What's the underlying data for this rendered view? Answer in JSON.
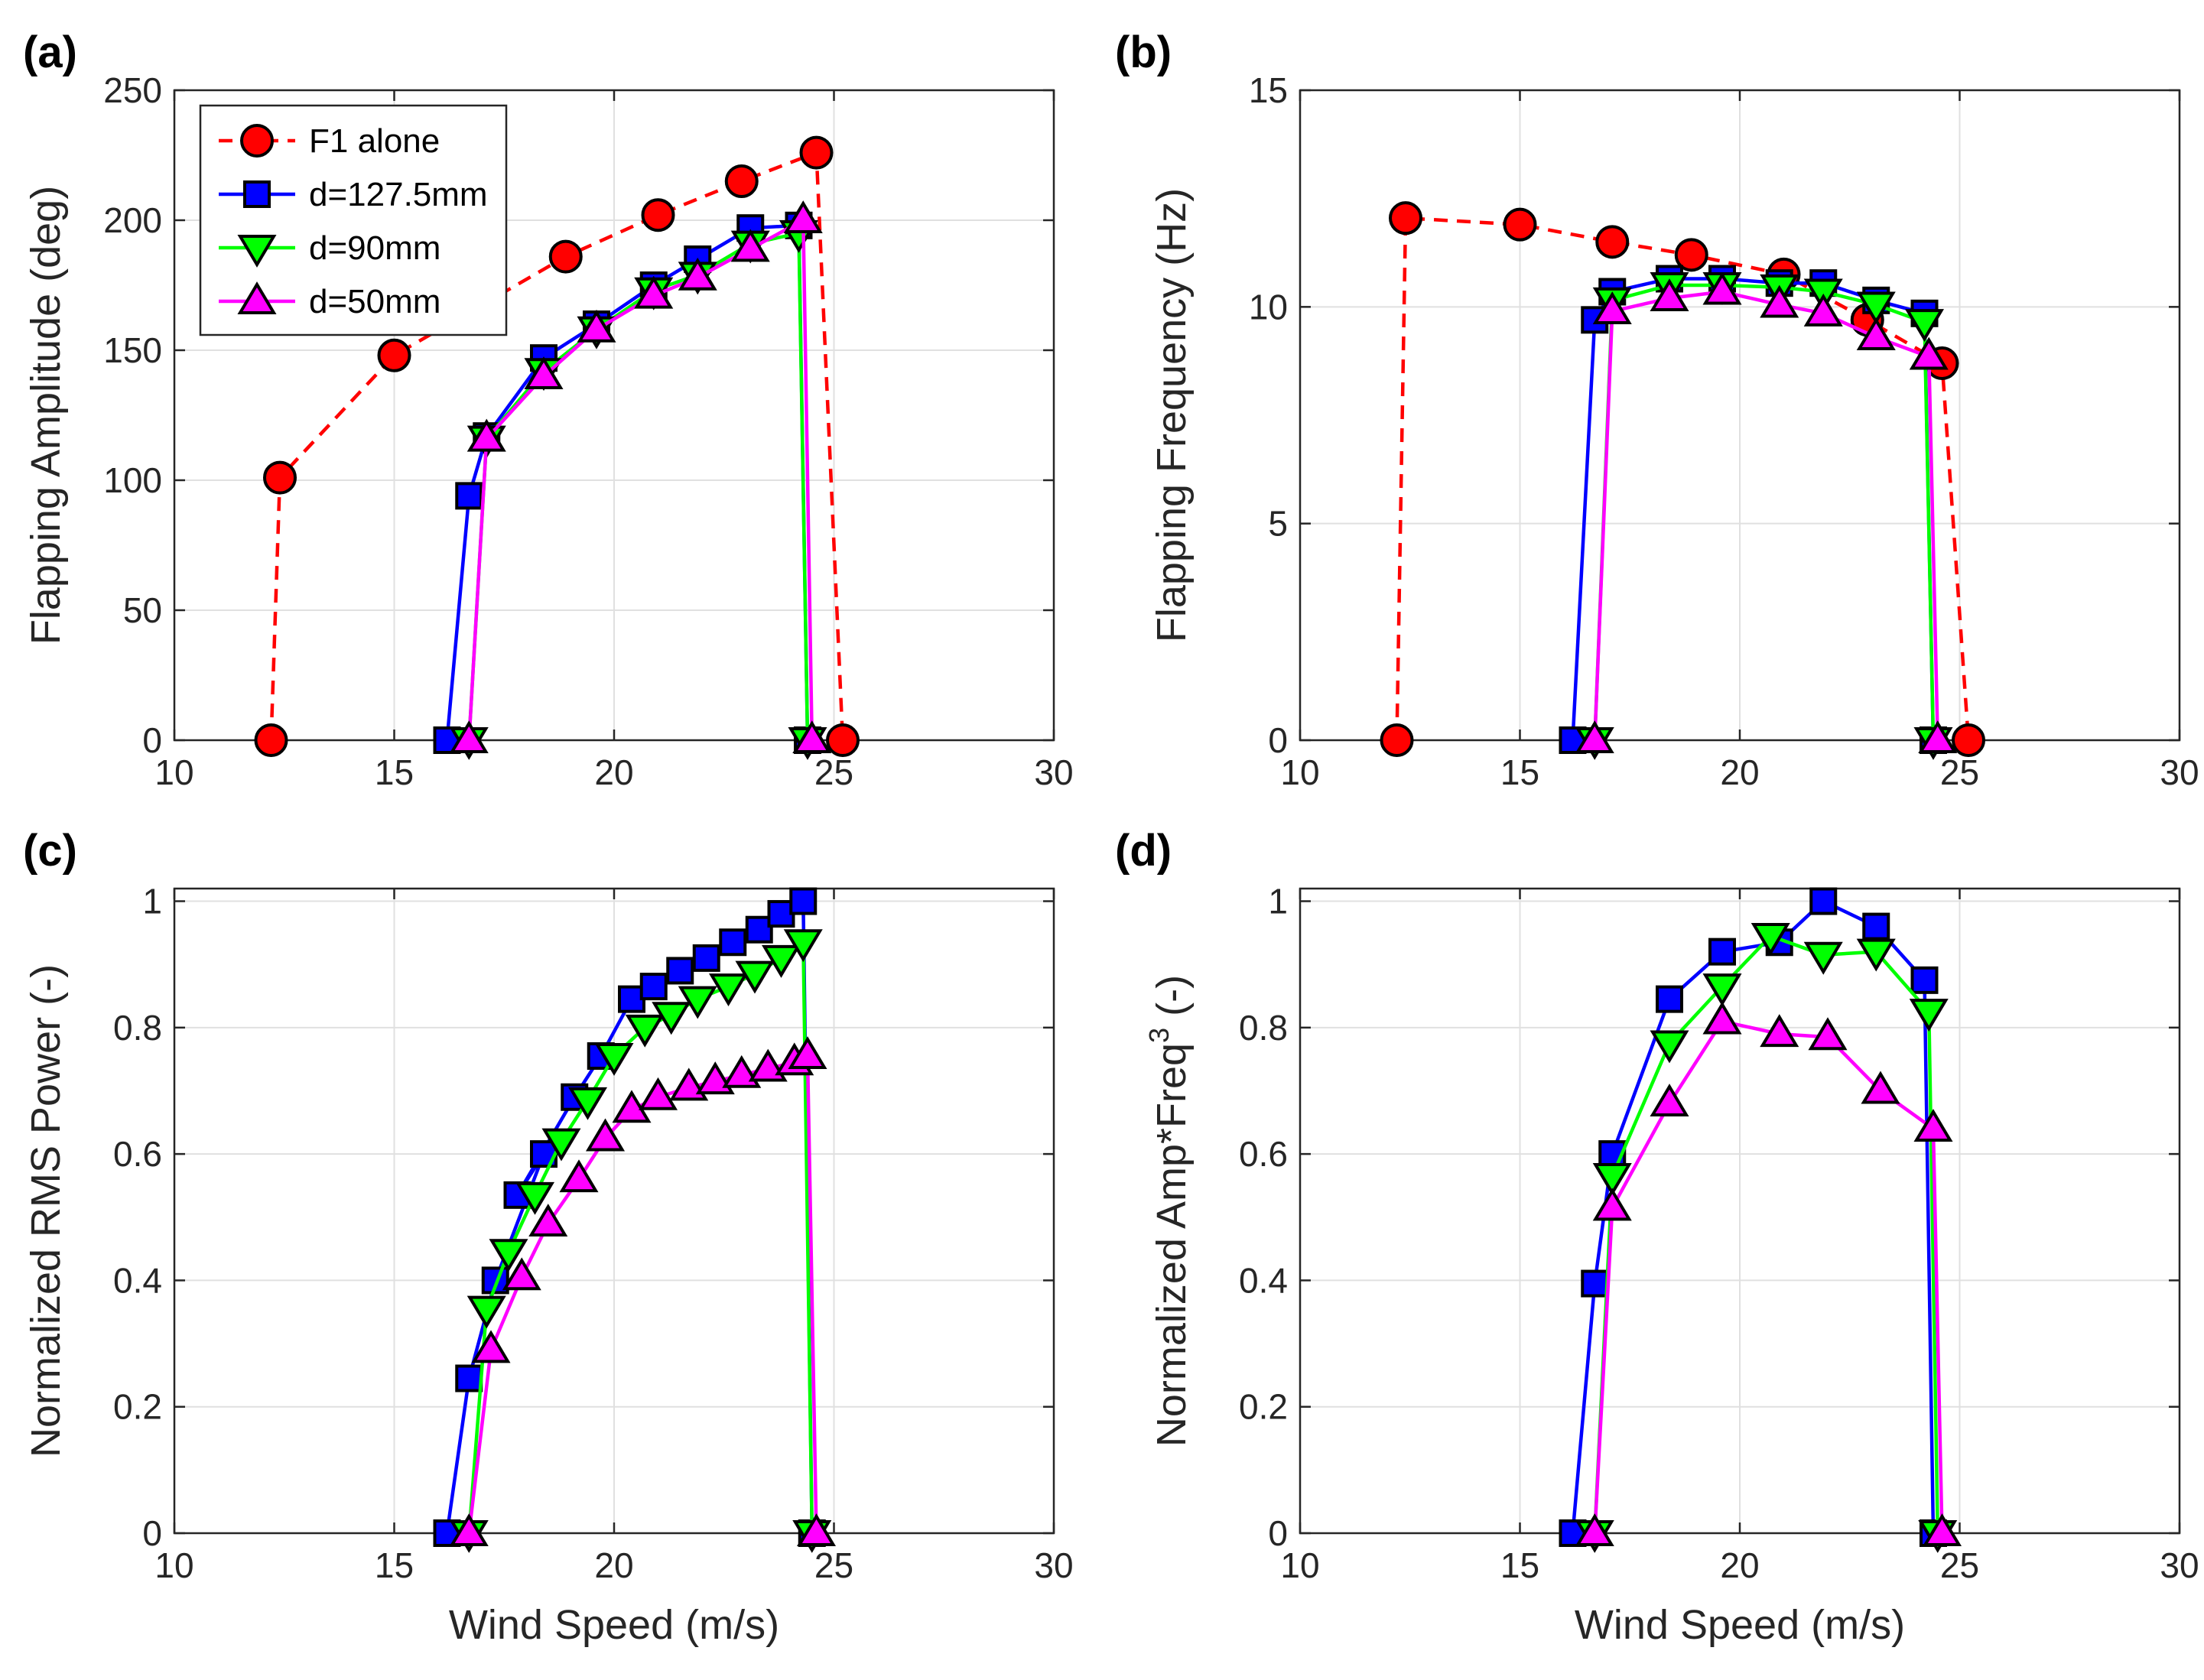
{
  "colors": {
    "series": [
      "#ff0000",
      "#0000ff",
      "#00ff00",
      "#ff00ff"
    ],
    "edge": "#000000",
    "grid": "#e0e0e0",
    "axis": "#262626"
  },
  "series_style": [
    {
      "marker": "circle",
      "line": "dashed"
    },
    {
      "marker": "square",
      "line": "solid"
    },
    {
      "marker": "triangle-down",
      "line": "solid"
    },
    {
      "marker": "triangle-up",
      "line": "solid"
    }
  ],
  "legend": {
    "location": "top-left",
    "entries": [
      "F1 alone",
      "d=127.5mm",
      "d=90mm",
      "d=50mm"
    ]
  },
  "chart_data": [
    {
      "panel_label": "(a)",
      "type": "line",
      "title": "",
      "xlabel": "",
      "ylabel": "Flapping Amplitude (deg)",
      "xlim": [
        10,
        30
      ],
      "ylim": [
        0,
        250
      ],
      "xticks": [
        "10",
        "15",
        "20",
        "25",
        "30"
      ],
      "yticks": [
        "0",
        "50",
        "100",
        "150",
        "200",
        "250"
      ],
      "grid": true,
      "legend": true,
      "series": [
        {
          "name": "F1 alone",
          "x": [
            12.2,
            12.4,
            15.0,
            18.9,
            21.0,
            22.9,
            24.6,
            25.2
          ],
          "y": [
            0,
            101,
            148,
            186,
            202,
            215,
            226,
            0
          ]
        },
        {
          "name": "d=127.5mm",
          "x": [
            16.2,
            16.7,
            17.1,
            18.4,
            19.6,
            20.9,
            21.9,
            23.1,
            24.2,
            24.4
          ],
          "y": [
            0,
            94,
            117,
            147,
            160,
            175,
            185,
            197,
            198,
            0
          ]
        },
        {
          "name": "d=90mm",
          "x": [
            16.7,
            17.1,
            18.4,
            19.6,
            20.9,
            21.9,
            23.1,
            24.2,
            24.4
          ],
          "y": [
            0,
            116,
            142,
            158,
            173,
            179,
            191,
            195,
            0
          ]
        },
        {
          "name": "d=50mm",
          "x": [
            16.7,
            17.1,
            18.4,
            19.6,
            20.9,
            21.9,
            23.1,
            24.3,
            24.5
          ],
          "y": [
            0,
            116,
            140,
            158,
            171,
            178,
            189,
            200,
            0
          ]
        }
      ]
    },
    {
      "panel_label": "(b)",
      "type": "line",
      "title": "",
      "xlabel": "",
      "ylabel": "Flapping Frequency (Hz)",
      "xlim": [
        10,
        30
      ],
      "ylim": [
        0,
        15
      ],
      "xticks": [
        "10",
        "15",
        "20",
        "25",
        "30"
      ],
      "yticks": [
        "0",
        "5",
        "10",
        "15"
      ],
      "grid": true,
      "legend": false,
      "series": [
        {
          "name": "F1 alone",
          "x": [
            12.2,
            12.4,
            15.0,
            17.1,
            18.9,
            21.0,
            22.9,
            24.6,
            25.2
          ],
          "y": [
            0,
            12.05,
            11.9,
            11.5,
            11.2,
            10.75,
            9.7,
            8.7,
            0
          ]
        },
        {
          "name": "d=127.5mm",
          "x": [
            16.2,
            16.7,
            17.1,
            18.4,
            19.6,
            20.9,
            21.9,
            23.1,
            24.2,
            24.4
          ],
          "y": [
            0,
            9.7,
            10.35,
            10.65,
            10.65,
            10.55,
            10.55,
            10.15,
            9.85,
            0
          ]
        },
        {
          "name": "d=90mm",
          "x": [
            16.7,
            17.1,
            18.4,
            19.6,
            20.9,
            21.9,
            23.1,
            24.2,
            24.4
          ],
          "y": [
            0,
            10.15,
            10.5,
            10.5,
            10.45,
            10.35,
            10.05,
            9.65,
            0
          ]
        },
        {
          "name": "d=50mm",
          "x": [
            16.7,
            17.1,
            18.4,
            19.6,
            20.9,
            21.9,
            23.1,
            24.3,
            24.5
          ],
          "y": [
            0,
            9.9,
            10.2,
            10.35,
            10.05,
            9.85,
            9.3,
            8.85,
            0
          ]
        }
      ]
    },
    {
      "panel_label": "(c)",
      "type": "line",
      "title": "",
      "xlabel": "Wind Speed (m/s)",
      "ylabel": "Normalized RMS Power (-)",
      "xlim": [
        10,
        30
      ],
      "ylim": [
        0,
        1.02
      ],
      "xticks": [
        "10",
        "15",
        "20",
        "25",
        "30"
      ],
      "yticks": [
        "0",
        "0.2",
        "0.4",
        "0.6",
        "0.8",
        "1"
      ],
      "grid": true,
      "legend": false,
      "series": [
        {
          "name": "d=127.5mm",
          "x": [
            16.2,
            16.7,
            17.3,
            18.4,
            17.8,
            19.1,
            19.7,
            20.4,
            20.9,
            21.5,
            22.1,
            22.7,
            23.3,
            23.8,
            24.3,
            24.5
          ],
          "y": [
            0,
            0.245,
            0.4,
            0.6,
            0.535,
            0.69,
            0.755,
            0.845,
            0.865,
            0.89,
            0.91,
            0.935,
            0.955,
            0.98,
            1.0,
            0
          ]
        },
        {
          "name": "d=90mm",
          "x": [
            16.7,
            17.1,
            17.6,
            18.2,
            18.8,
            19.4,
            20.0,
            20.7,
            21.3,
            21.9,
            22.6,
            23.2,
            23.8,
            24.3,
            24.5
          ],
          "y": [
            0,
            0.355,
            0.445,
            0.535,
            0.62,
            0.685,
            0.755,
            0.8,
            0.82,
            0.845,
            0.865,
            0.885,
            0.91,
            0.935,
            0
          ]
        },
        {
          "name": "d=50mm",
          "x": [
            16.7,
            17.2,
            17.9,
            18.5,
            19.2,
            19.8,
            20.4,
            21.0,
            21.7,
            22.3,
            22.9,
            23.5,
            24.1,
            24.4,
            24.6
          ],
          "y": [
            0,
            0.29,
            0.405,
            0.49,
            0.56,
            0.625,
            0.67,
            0.69,
            0.705,
            0.715,
            0.725,
            0.735,
            0.745,
            0.755,
            0
          ]
        }
      ]
    },
    {
      "panel_label": "(d)",
      "type": "line",
      "title": "",
      "xlabel": "Wind Speed (m/s)",
      "ylabel_prefix": "Normalized Amp*Freq",
      "ylabel_sup": "3",
      "ylabel_suffix": " (-)",
      "xlim": [
        10,
        30
      ],
      "ylim": [
        0,
        1.02
      ],
      "xticks": [
        "10",
        "15",
        "20",
        "25",
        "30"
      ],
      "yticks": [
        "0",
        "0.2",
        "0.4",
        "0.6",
        "0.8",
        "1"
      ],
      "grid": true,
      "legend": false,
      "series": [
        {
          "name": "d=127.5mm",
          "x": [
            16.2,
            16.7,
            17.1,
            18.4,
            19.6,
            20.9,
            21.9,
            23.1,
            24.2,
            24.4
          ],
          "y": [
            0,
            0.395,
            0.6,
            0.845,
            0.92,
            0.935,
            1.0,
            0.96,
            0.875,
            0
          ]
        },
        {
          "name": "d=90mm",
          "x": [
            16.7,
            17.1,
            18.4,
            19.6,
            20.7,
            21.9,
            23.1,
            24.3,
            24.5
          ],
          "y": [
            0,
            0.565,
            0.775,
            0.865,
            0.945,
            0.915,
            0.92,
            0.825,
            0
          ]
        },
        {
          "name": "d=50mm",
          "x": [
            16.7,
            17.1,
            18.4,
            19.6,
            20.9,
            22.0,
            23.2,
            24.4,
            24.6
          ],
          "y": [
            0,
            0.515,
            0.68,
            0.81,
            0.79,
            0.785,
            0.7,
            0.64,
            0
          ]
        }
      ]
    }
  ]
}
